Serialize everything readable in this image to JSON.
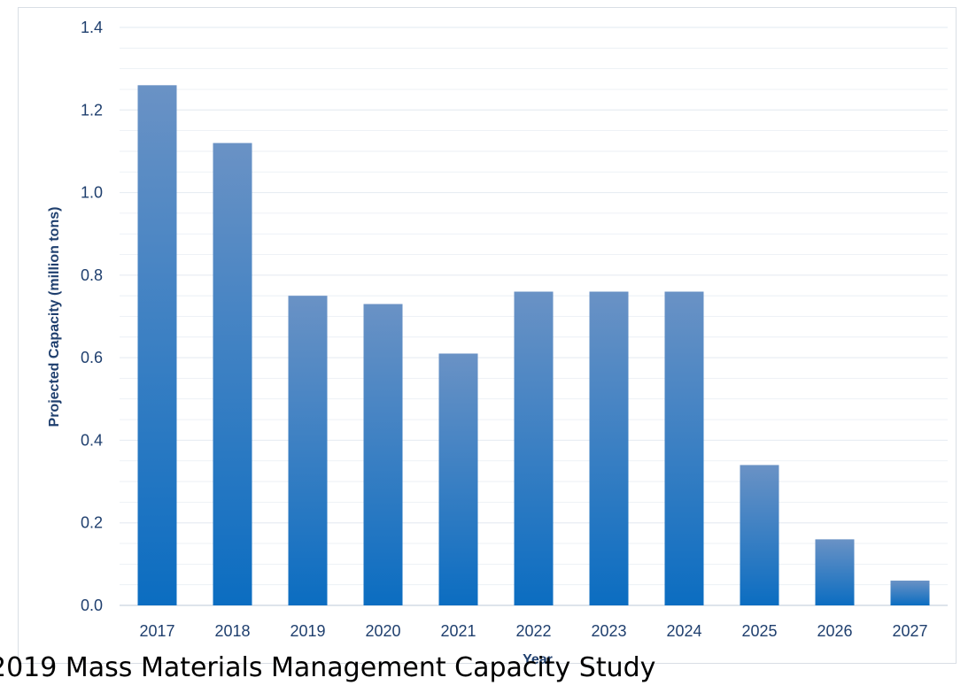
{
  "caption": "2019 Mass Materials Management Capacity Study",
  "colors": {
    "bar_top": "#6a92c5",
    "bar_bottom": "#0b6dc1",
    "grid": "#e8edf3",
    "axis_text": "#1f3f6e"
  },
  "chart_data": {
    "type": "bar",
    "categories": [
      "2017",
      "2018",
      "2019",
      "2020",
      "2021",
      "2022",
      "2023",
      "2024",
      "2025",
      "2026",
      "2027"
    ],
    "values": [
      1.26,
      1.12,
      0.75,
      0.73,
      0.61,
      0.76,
      0.76,
      0.76,
      0.34,
      0.16,
      0.06
    ],
    "xlabel": "Year",
    "ylabel": "Projected Capacity (million tons)",
    "ylim": [
      0,
      1.4
    ],
    "yticks": [
      "0.0",
      "0.2",
      "0.4",
      "0.6",
      "0.8",
      "1.0",
      "1.2",
      "1.4"
    ],
    "grid": true,
    "legend": "none"
  }
}
